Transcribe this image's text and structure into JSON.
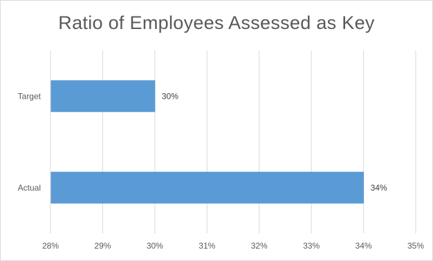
{
  "chart_data": {
    "type": "bar",
    "orientation": "horizontal",
    "title": "Ratio of Employees Assessed as Key",
    "categories": [
      "Target",
      "Actual"
    ],
    "values": [
      30,
      34
    ],
    "data_labels": [
      "30%",
      "34%"
    ],
    "x_ticks": [
      "28%",
      "29%",
      "30%",
      "31%",
      "32%",
      "33%",
      "34%",
      "35%"
    ],
    "xlim": [
      28,
      35
    ],
    "xlabel": "",
    "ylabel": "",
    "grid": true,
    "legend": "none",
    "bar_color": "#5b9bd5",
    "grid_color": "#d9d9d9"
  }
}
